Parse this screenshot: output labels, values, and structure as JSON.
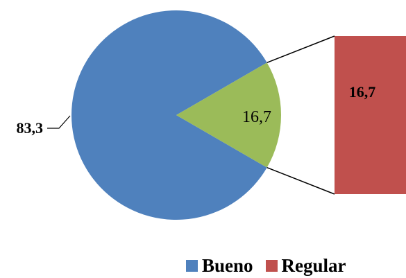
{
  "chart_data": {
    "type": "pie",
    "subtype": "bar-of-pie",
    "title": "",
    "slices": [
      {
        "name": "Bueno",
        "value": 83.3,
        "label": "83,3",
        "color": "#4F81BD"
      },
      {
        "name": "Regular",
        "value": 16.7,
        "label": "16,7",
        "color": "#9BBB59"
      }
    ],
    "secondary_bar": {
      "name": "Regular",
      "value": 16.7,
      "label": "16,7",
      "color": "#C0504D"
    },
    "legend": {
      "position": "bottom",
      "entries": [
        {
          "name": "Bueno",
          "color": "#4F81BD"
        },
        {
          "name": "Regular",
          "color": "#C0504D"
        }
      ]
    }
  }
}
